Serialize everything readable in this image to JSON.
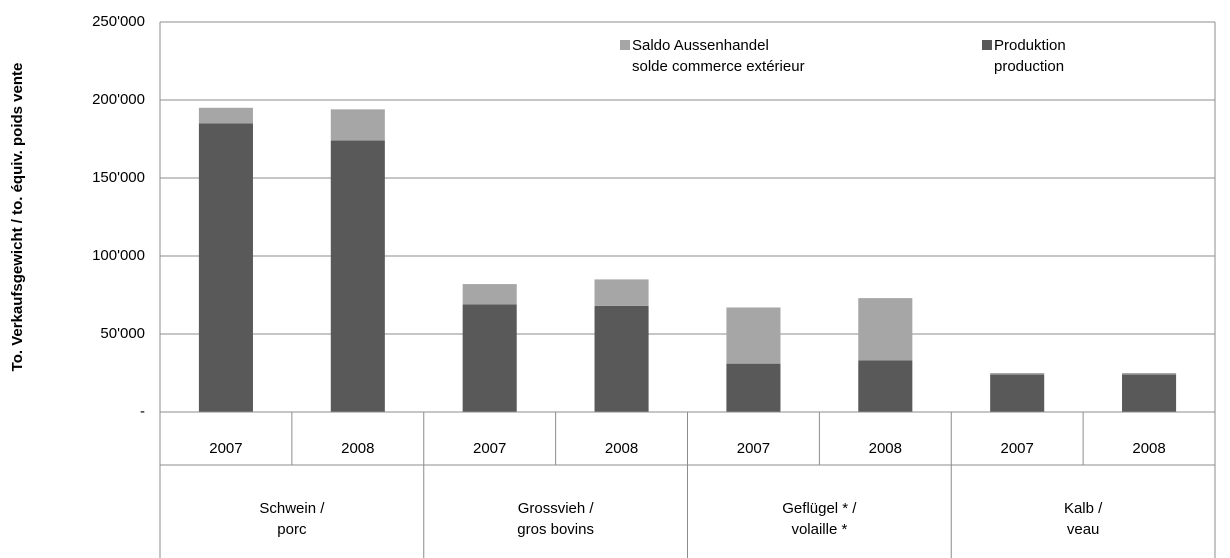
{
  "chart_data": {
    "type": "bar",
    "stacked": true,
    "y_label": "To. Verkaufsgewicht / to. équiv. poids vente",
    "categories": [
      "2007",
      "2008",
      "2007",
      "2008",
      "2007",
      "2008",
      "2007",
      "2008"
    ],
    "groups": [
      "Schwein /\nporc",
      "Grossvieh /\ngros bovins",
      "Geflügel * /\nvolaille *",
      "Kalb /\nveau"
    ],
    "series": [
      {
        "name": "Saldo Aussenhandel\nsolde commerce extérieur",
        "color": "#a6a6a6",
        "values": [
          10000,
          20000,
          13000,
          17000,
          36000,
          40000,
          1000,
          1000
        ]
      },
      {
        "name": "Produktion\nproduction",
        "color": "#595959",
        "values": [
          185000,
          174000,
          69000,
          68000,
          31000,
          33000,
          24000,
          24000
        ]
      }
    ],
    "ylim": [
      0,
      250000
    ],
    "yticks": [
      {
        "value": 0,
        "label": "-"
      },
      {
        "value": 50000,
        "label": "50'000"
      },
      {
        "value": 100000,
        "label": "100'000"
      },
      {
        "value": 150000,
        "label": "150'000"
      },
      {
        "value": 200000,
        "label": "200'000"
      },
      {
        "value": 250000,
        "label": "250'000"
      }
    ],
    "grid": true
  }
}
